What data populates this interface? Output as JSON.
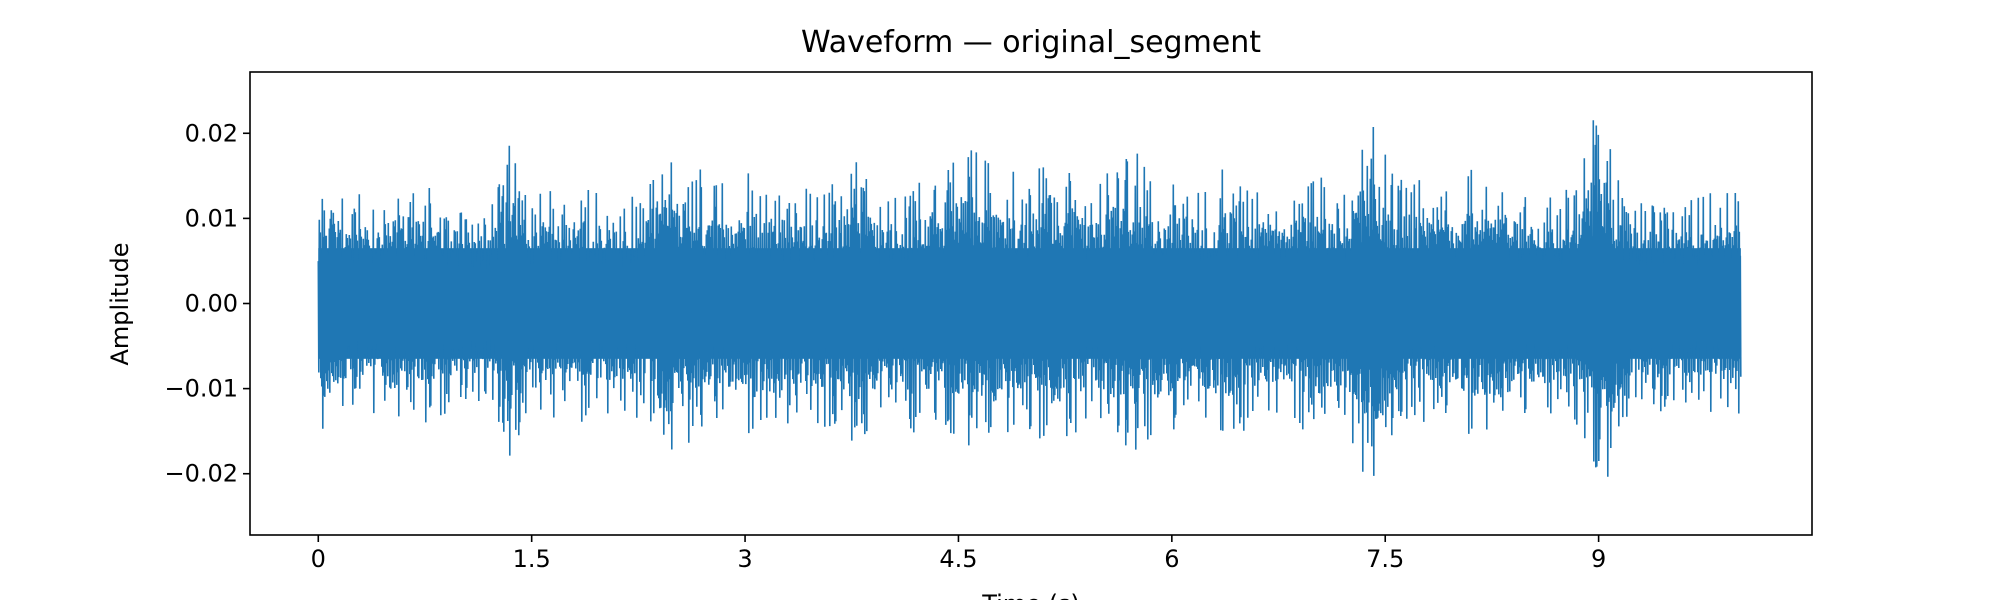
{
  "chart_data": {
    "type": "line",
    "title": "Waveform — original_segment",
    "xlabel": "Time (s)",
    "ylabel": "Amplitude",
    "xlim": [
      -0.48,
      10.5
    ],
    "ylim": [
      -0.0272,
      0.0272
    ],
    "x_ticks": [
      0,
      1.5,
      3,
      4.5,
      6,
      7.5,
      9
    ],
    "x_tick_labels": [
      "0",
      "1.5",
      "3",
      "4.5",
      "6",
      "7.5",
      "9"
    ],
    "y_ticks": [
      0.02,
      0.01,
      0.0,
      -0.01,
      -0.02
    ],
    "y_tick_labels": [
      "0.02",
      "0.01",
      "0.00",
      "−0.01",
      "−0.02"
    ],
    "grid": false,
    "legend": "none",
    "series": [
      {
        "color": "#1f77b4",
        "duration_s": 10.0,
        "envelope": {
          "x": [
            0.0,
            0.02,
            0.1,
            0.2,
            0.3,
            0.45,
            0.6,
            0.75,
            0.9,
            1.05,
            1.2,
            1.35,
            1.5,
            1.58,
            1.7,
            1.85,
            2.0,
            2.15,
            2.3,
            2.38,
            2.43,
            2.5,
            2.6,
            2.75,
            2.9,
            3.05,
            3.2,
            3.35,
            3.5,
            3.65,
            3.8,
            3.95,
            4.1,
            4.25,
            4.4,
            4.55,
            4.7,
            4.85,
            5.0,
            5.15,
            5.3,
            5.45,
            5.6,
            5.75,
            5.9,
            6.05,
            6.2,
            6.35,
            6.5,
            6.65,
            6.8,
            6.95,
            7.1,
            7.25,
            7.32,
            7.4,
            7.55,
            7.7,
            7.85,
            8.0,
            8.15,
            8.3,
            8.45,
            8.6,
            8.75,
            8.88,
            8.95,
            9.02,
            9.15,
            9.3,
            9.45,
            9.6,
            9.75,
            9.9,
            10.0
          ],
          "max": [
            0.014,
            0.016,
            0.016,
            0.012,
            0.013,
            0.014,
            0.016,
            0.014,
            0.013,
            0.012,
            0.011,
            0.019,
            0.012,
            0.014,
            0.013,
            0.014,
            0.013,
            0.012,
            0.015,
            0.018,
            0.023,
            0.018,
            0.017,
            0.015,
            0.014,
            0.016,
            0.015,
            0.013,
            0.014,
            0.015,
            0.017,
            0.013,
            0.014,
            0.016,
            0.015,
            0.019,
            0.017,
            0.016,
            0.015,
            0.019,
            0.016,
            0.014,
            0.017,
            0.018,
            0.016,
            0.015,
            0.014,
            0.016,
            0.015,
            0.014,
            0.013,
            0.016,
            0.015,
            0.014,
            0.019,
            0.022,
            0.016,
            0.015,
            0.014,
            0.015,
            0.016,
            0.017,
            0.013,
            0.014,
            0.013,
            0.016,
            0.021,
            0.025,
            0.015,
            0.012,
            0.013,
            0.012,
            0.013,
            0.014,
            0.013
          ],
          "min": [
            -0.015,
            -0.016,
            -0.015,
            -0.013,
            -0.012,
            -0.014,
            -0.015,
            -0.014,
            -0.013,
            -0.012,
            -0.011,
            -0.019,
            -0.012,
            -0.014,
            -0.013,
            -0.014,
            -0.013,
            -0.013,
            -0.014,
            -0.018,
            -0.023,
            -0.018,
            -0.017,
            -0.014,
            -0.015,
            -0.016,
            -0.015,
            -0.014,
            -0.014,
            -0.016,
            -0.017,
            -0.014,
            -0.015,
            -0.016,
            -0.015,
            -0.017,
            -0.017,
            -0.016,
            -0.015,
            -0.017,
            -0.016,
            -0.014,
            -0.016,
            -0.018,
            -0.016,
            -0.015,
            -0.014,
            -0.016,
            -0.015,
            -0.014,
            -0.013,
            -0.016,
            -0.015,
            -0.015,
            -0.021,
            -0.022,
            -0.016,
            -0.015,
            -0.014,
            -0.015,
            -0.016,
            -0.017,
            -0.013,
            -0.014,
            -0.013,
            -0.015,
            -0.021,
            -0.025,
            -0.015,
            -0.012,
            -0.013,
            -0.012,
            -0.013,
            -0.014,
            -0.013
          ]
        }
      }
    ]
  }
}
